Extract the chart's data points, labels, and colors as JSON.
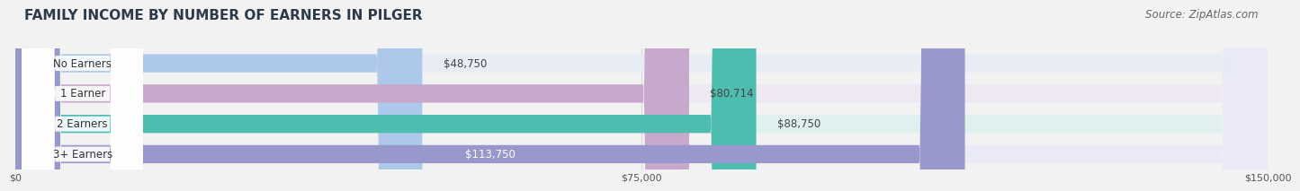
{
  "title": "FAMILY INCOME BY NUMBER OF EARNERS IN PILGER",
  "source": "Source: ZipAtlas.com",
  "categories": [
    "No Earners",
    "1 Earner",
    "2 Earners",
    "3+ Earners"
  ],
  "values": [
    48750,
    80714,
    88750,
    113750
  ],
  "value_labels": [
    "$48,750",
    "$80,714",
    "$88,750",
    "$113,750"
  ],
  "bar_colors": [
    "#adc8ea",
    "#c8a8cc",
    "#4dbdb0",
    "#9898cc"
  ],
  "bar_bg_colors": [
    "#e8ecf4",
    "#ede8f2",
    "#e0f0ee",
    "#eaeaf6"
  ],
  "xlim": [
    0,
    150000
  ],
  "xticks": [
    0,
    75000,
    150000
  ],
  "xtick_labels": [
    "$0",
    "$75,000",
    "$150,000"
  ],
  "title_fontsize": 11,
  "source_fontsize": 8.5,
  "label_fontsize": 8.5,
  "value_fontsize": 8.5,
  "bar_height": 0.6,
  "fig_bg": "#f2f2f2"
}
